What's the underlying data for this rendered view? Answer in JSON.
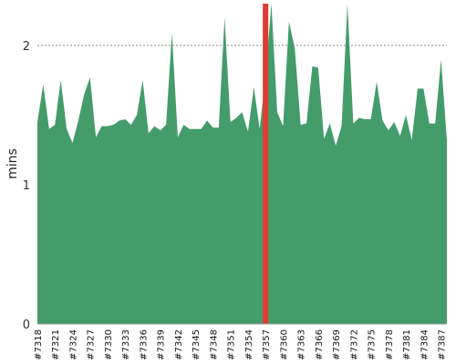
{
  "chart_data": {
    "type": "area",
    "title": "",
    "xlabel": "",
    "ylabel": "mins",
    "ylim": [
      0,
      2.3
    ],
    "yticks": [
      0,
      1,
      2
    ],
    "grid": true,
    "x": [
      7318,
      7319,
      7320,
      7321,
      7322,
      7323,
      7324,
      7325,
      7326,
      7327,
      7328,
      7329,
      7330,
      7331,
      7332,
      7333,
      7334,
      7335,
      7336,
      7337,
      7338,
      7339,
      7340,
      7341,
      7342,
      7343,
      7344,
      7345,
      7346,
      7347,
      7348,
      7349,
      7350,
      7351,
      7352,
      7353,
      7354,
      7355,
      7356,
      7357,
      7358,
      7359,
      7360,
      7361,
      7362,
      7363,
      7364,
      7365,
      7366,
      7367,
      7368,
      7369,
      7370,
      7371,
      7372,
      7373,
      7374,
      7375,
      7376,
      7377,
      7378,
      7379,
      7380,
      7381,
      7382,
      7383,
      7384,
      7385,
      7386,
      7387,
      7388
    ],
    "x_tick_labels": [
      "#7318",
      "#7321",
      "#7324",
      "#7327",
      "#7330",
      "#7333",
      "#7336",
      "#7339",
      "#7342",
      "#7345",
      "#7348",
      "#7351",
      "#7354",
      "#7357",
      "#7360",
      "#7363",
      "#7366",
      "#7369",
      "#7372",
      "#7375",
      "#7378",
      "#7381",
      "#7384",
      "#7387"
    ],
    "series": [
      {
        "values": [
          1.45,
          1.72,
          1.4,
          1.43,
          1.75,
          1.4,
          1.3,
          1.46,
          1.65,
          1.77,
          1.34,
          1.42,
          1.42,
          1.43,
          1.46,
          1.47,
          1.43,
          1.5,
          1.75,
          1.37,
          1.42,
          1.39,
          1.43,
          2.09,
          1.34,
          1.43,
          1.4,
          1.4,
          1.4,
          1.46,
          1.41,
          1.41,
          2.2,
          1.45,
          1.48,
          1.52,
          1.38,
          1.7,
          1.4,
          1.78,
          2.3,
          1.52,
          1.42,
          2.17,
          1.98,
          1.43,
          1.44,
          1.85,
          1.84,
          1.33,
          1.44,
          1.28,
          1.42,
          2.3,
          1.44,
          1.48,
          1.47,
          1.47,
          1.74,
          1.46,
          1.39,
          1.45,
          1.35,
          1.5,
          1.32,
          1.69,
          1.69,
          1.44,
          1.44,
          1.9,
          1.32
        ],
        "color": "#449c6b"
      }
    ],
    "highlight": {
      "x": 7357,
      "color": "#e03c31"
    }
  }
}
